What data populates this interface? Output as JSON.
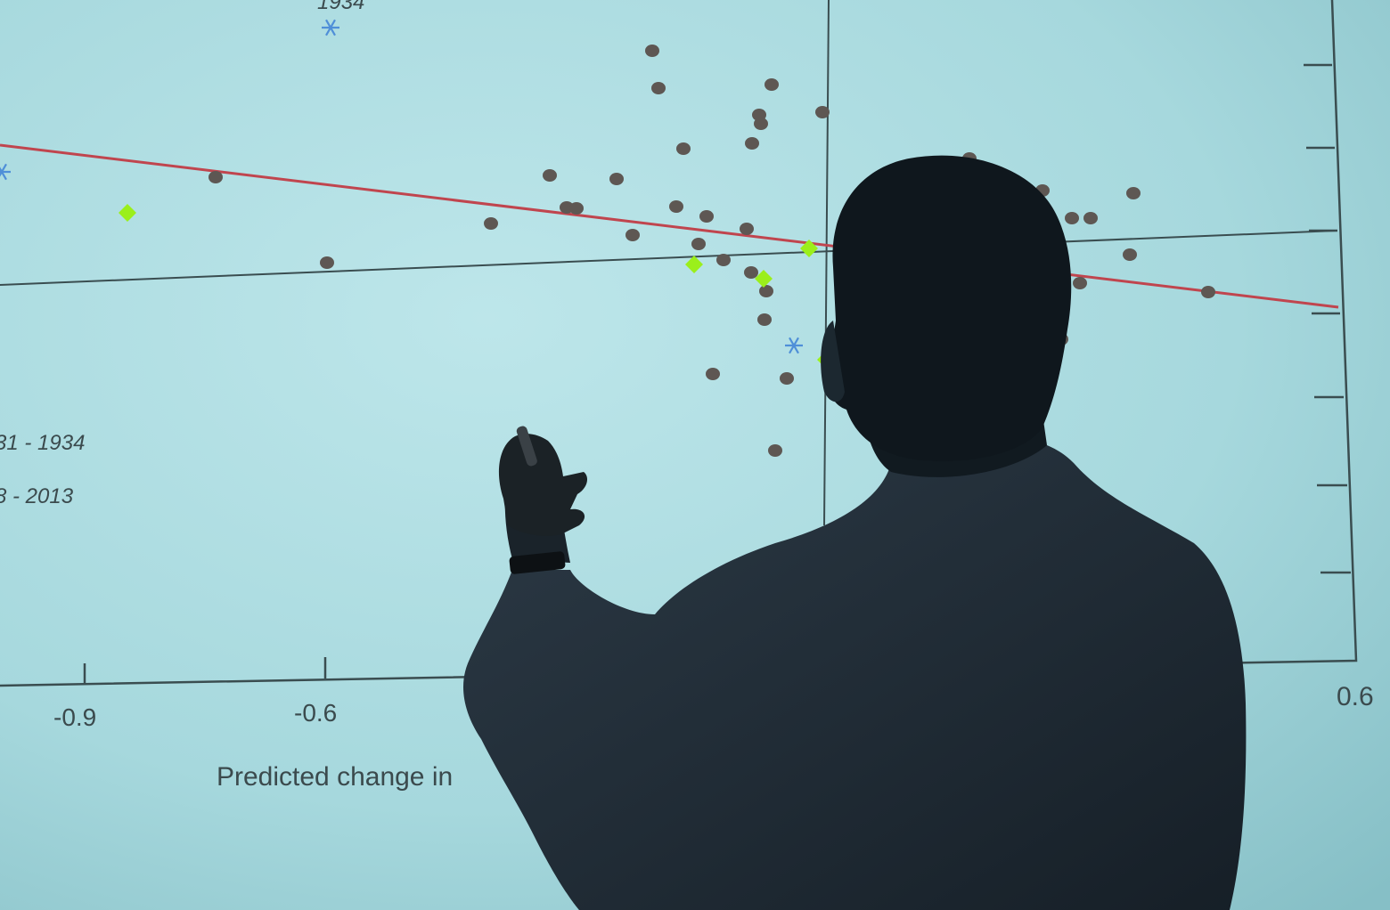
{
  "photo": {
    "subject": "person-silhouette-pointing-at-projected-scatter-plot",
    "colors": {
      "screen_light": "#b8e4e8",
      "screen_mid": "#a5d7dc",
      "screen_dark": "#7fb8bf",
      "axis": "#3a4d50",
      "regression_line": "#c0454e",
      "dot": "#5e5753",
      "diamond": "#9bef1b",
      "asterisk": "#4f8fd8",
      "text": "#3b4a4d",
      "silhouette": "#121c22",
      "shirt": "#24313c"
    }
  },
  "chart_data": {
    "type": "scatter",
    "xlabel": "Predicted change in",
    "x_ticks": [
      "-0.9",
      "-0.6",
      "0.6"
    ],
    "annotations": [
      "1934"
    ],
    "legend": [
      "31 - 1934",
      "8 - 2013"
    ],
    "grid": false
  }
}
